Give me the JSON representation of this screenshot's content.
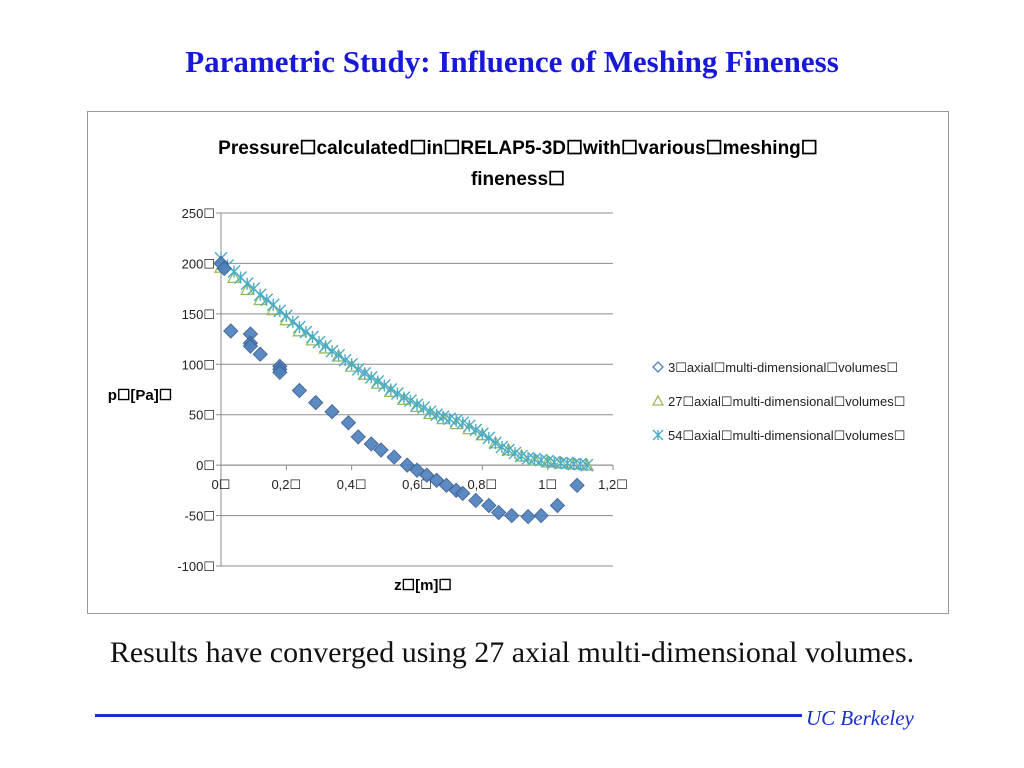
{
  "slide": {
    "title": "Parametric Study: Influence of Meshing Fineness",
    "caption": "Results have converged using 27 axial multi-dimensional volumes.",
    "footer": "UC Berkeley",
    "accent_color": "#1818d8"
  },
  "chart_data": {
    "type": "scatter",
    "title": "Pressure calculated in RELAP5-3D with various meshing fineness",
    "title_lines": [
      "Pressure☐calculated☐in☐RELAP5-3D☐with☐various☐meshing☐",
      "fineness☐"
    ],
    "xlabel": "z☐[m]☐",
    "ylabel": "p☐[Pa]☐",
    "xlim": [
      0,
      1.2
    ],
    "ylim": [
      -100,
      250
    ],
    "x_ticks": [
      {
        "v": 0,
        "label": "0☐"
      },
      {
        "v": 0.2,
        "label": "0,2☐"
      },
      {
        "v": 0.4,
        "label": "0,4☐"
      },
      {
        "v": 0.6,
        "label": "0,6☐"
      },
      {
        "v": 0.8,
        "label": "0,8☐"
      },
      {
        "v": 1,
        "label": "1☐"
      },
      {
        "v": 1.2,
        "label": "1,2☐"
      }
    ],
    "y_ticks": [
      {
        "v": 250,
        "label": "250☐"
      },
      {
        "v": 200,
        "label": "200☐"
      },
      {
        "v": 150,
        "label": "150☐"
      },
      {
        "v": 100,
        "label": "100☐"
      },
      {
        "v": 50,
        "label": "50☐"
      },
      {
        "v": 0,
        "label": "0☐"
      },
      {
        "v": -50,
        "label": "-50☐"
      },
      {
        "v": -100,
        "label": "-100☐"
      }
    ],
    "grid": "horizontal",
    "legend_position": "right",
    "series": [
      {
        "name": "3 axial multi-dimensional volumes",
        "legend_label": "3☐axial☐multi-dimensional☐volumes☐",
        "marker": "diamond",
        "color": "#4f81bd",
        "x": [
          0,
          0.01,
          0.03,
          0.09,
          0.09,
          0.09,
          0.12,
          0.18,
          0.18,
          0.18,
          0.24,
          0.29,
          0.34,
          0.39,
          0.42,
          0.46,
          0.49,
          0.53,
          0.57,
          0.6,
          0.63,
          0.66,
          0.69,
          0.72,
          0.74,
          0.78,
          0.82,
          0.85,
          0.89,
          0.94,
          0.98,
          1.03,
          1.09
        ],
        "y": [
          200,
          195,
          133,
          130,
          121,
          118,
          110,
          98,
          95,
          92,
          74,
          62,
          53,
          42,
          28,
          21,
          15,
          8,
          0,
          -5,
          -10,
          -15,
          -20,
          -25,
          -28,
          -35,
          -40,
          -47,
          -50,
          -51,
          -50,
          -40,
          -20
        ]
      },
      {
        "name": "27 axial multi-dimensional volumes",
        "legend_label": "27☐axial☐multi-dimensional☐volumes☐",
        "marker": "triangle",
        "color": "#9bbb59",
        "x": [
          0,
          0.04,
          0.08,
          0.12,
          0.16,
          0.2,
          0.24,
          0.28,
          0.32,
          0.36,
          0.4,
          0.44,
          0.48,
          0.52,
          0.56,
          0.6,
          0.64,
          0.68,
          0.72,
          0.76,
          0.8,
          0.84,
          0.88,
          0.92,
          0.96,
          1.0,
          1.04,
          1.08,
          1.12
        ],
        "y": [
          196,
          186,
          174,
          164,
          154,
          144,
          133,
          124,
          116,
          108,
          98,
          90,
          81,
          73,
          65,
          58,
          51,
          46,
          41,
          36,
          30,
          22,
          15,
          9,
          5,
          3,
          2,
          1,
          0
        ]
      },
      {
        "name": "54 axial multi-dimensional volumes",
        "legend_label": "54☐axial☐multi-dimensional☐volumes☐",
        "marker": "asterisk",
        "color": "#4bacc6",
        "x": [
          0,
          0.02,
          0.04,
          0.06,
          0.08,
          0.1,
          0.12,
          0.14,
          0.16,
          0.18,
          0.2,
          0.22,
          0.24,
          0.26,
          0.28,
          0.3,
          0.32,
          0.34,
          0.36,
          0.38,
          0.4,
          0.42,
          0.44,
          0.46,
          0.48,
          0.5,
          0.52,
          0.54,
          0.56,
          0.58,
          0.6,
          0.62,
          0.64,
          0.66,
          0.68,
          0.7,
          0.72,
          0.74,
          0.76,
          0.78,
          0.8,
          0.82,
          0.84,
          0.86,
          0.88,
          0.9,
          0.92,
          0.94,
          0.96,
          0.98,
          1.0,
          1.02,
          1.04,
          1.06,
          1.08,
          1.1,
          1.12
        ],
        "y": [
          205,
          198,
          192,
          186,
          180,
          175,
          169,
          164,
          159,
          153,
          148,
          142,
          137,
          132,
          127,
          122,
          118,
          113,
          109,
          104,
          100,
          95,
          91,
          87,
          83,
          79,
          75,
          71,
          67,
          64,
          60,
          57,
          53,
          50,
          48,
          46,
          44,
          42,
          39,
          35,
          31,
          27,
          22,
          18,
          15,
          12,
          9,
          7,
          6,
          5,
          4,
          3,
          2,
          2,
          1,
          1,
          0
        ]
      }
    ]
  }
}
